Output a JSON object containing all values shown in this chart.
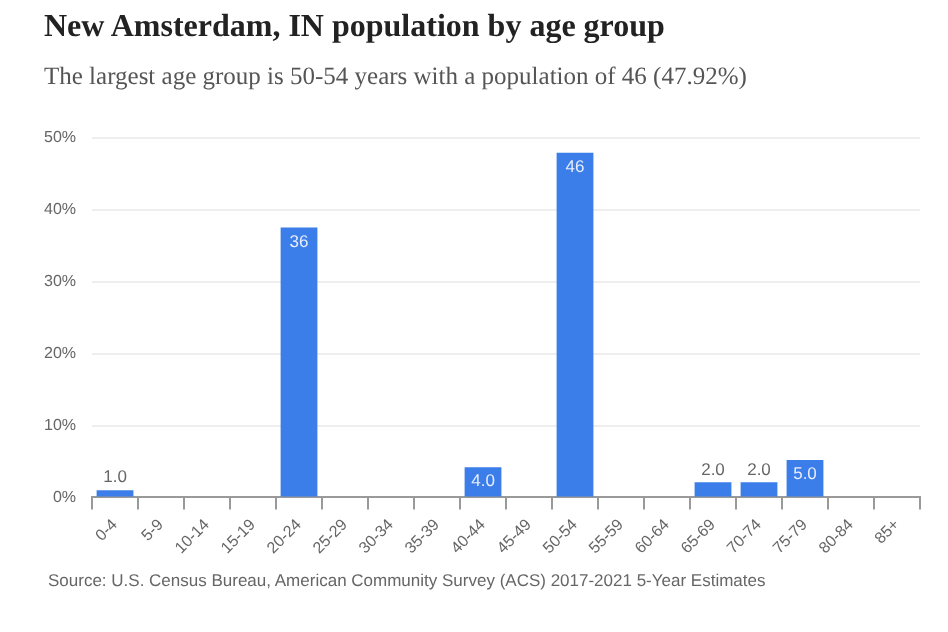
{
  "chart_data": {
    "type": "bar",
    "title": "New Amsterdam, IN population by age group",
    "subtitle": "The largest age group is 50-54 years with a population of 46 (47.92%)",
    "categories": [
      "0-4",
      "5-9",
      "10-14",
      "15-19",
      "20-24",
      "25-29",
      "30-34",
      "35-39",
      "40-44",
      "45-49",
      "50-54",
      "55-59",
      "60-64",
      "65-69",
      "70-74",
      "75-79",
      "80-84",
      "85+"
    ],
    "values": [
      1.0,
      0,
      0,
      0,
      37.5,
      0,
      0,
      0,
      4.2,
      0,
      47.9,
      0,
      0,
      2.1,
      2.1,
      5.2,
      0,
      0
    ],
    "color": "#3b7de9",
    "ylim": [
      0,
      50
    ],
    "yticks": [
      {
        "value": 0,
        "label": "0%"
      },
      {
        "value": 10,
        "label": "10%"
      },
      {
        "value": 20,
        "label": "20%"
      },
      {
        "value": 30,
        "label": "30%"
      },
      {
        "value": 40,
        "label": "40%"
      },
      {
        "value": 50,
        "label": "50%"
      }
    ],
    "grid": "y",
    "annotations": [
      "Source: U.S. Census Bureau, American Community Survey (ACS) 2017-2021 5-Year Estimates",
      {
        "text": "1.0",
        "x": "0-4",
        "y": 1.0
      },
      {
        "text": "36",
        "x": "20-24",
        "y": 37.5
      },
      {
        "text": "4.0",
        "x": "40-44",
        "y": 4.2
      },
      {
        "text": "46",
        "x": "50-54",
        "y": 47.9
      },
      {
        "text": "2.0",
        "x": "65-69",
        "y": 2.1
      },
      {
        "text": "2.0",
        "x": "70-74",
        "y": 2.1
      },
      {
        "text": "5.0",
        "x": "75-79",
        "y": 5.2
      }
    ]
  }
}
